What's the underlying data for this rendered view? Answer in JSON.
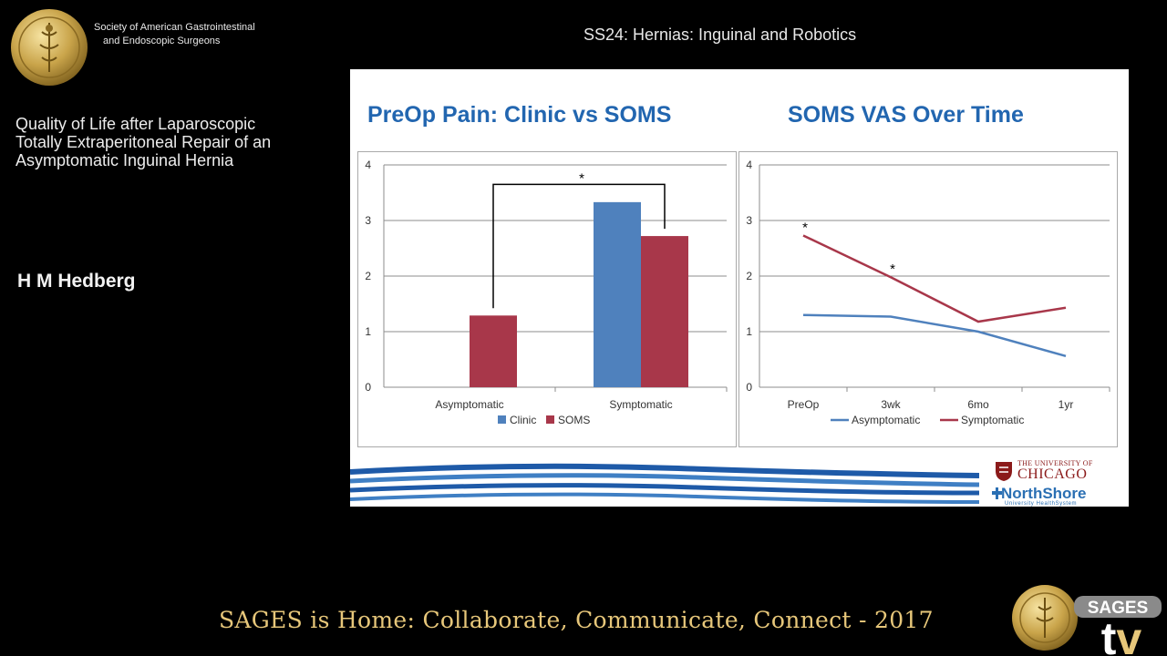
{
  "header": {
    "org_name_line1": "Society of American Gastrointestinal",
    "org_name_line2": "and Endoscopic Surgeons",
    "session_title": "SS24: Hernias: Inguinal and Robotics"
  },
  "sidebar": {
    "talk_title_lines": [
      "Quality of Life after Laparoscopic",
      "Totally Extraperitoneal Repair of an",
      "Asymptomatic Inguinal Hernia"
    ],
    "presenter": "H M Hedberg"
  },
  "slide": {
    "logos": {
      "uchicago_line1": "THE UNIVERSITY OF",
      "uchicago_line2": "CHICAGO",
      "northshore_line1": "NorthShore",
      "northshore_line2": "University HealthSystem"
    }
  },
  "colors": {
    "blue": "#4f81bd",
    "red": "#a8374a",
    "title_blue": "#2266b0",
    "gold": "#e7c77a"
  },
  "chart_data": [
    {
      "type": "bar",
      "title": "PreOp Pain: Clinic vs SOMS",
      "categories": [
        "Asymptomatic",
        "Symptomatic"
      ],
      "series": [
        {
          "name": "Clinic",
          "values": [
            null,
            3.33
          ]
        },
        {
          "name": "SOMS",
          "values": [
            1.29,
            2.72
          ]
        }
      ],
      "ylim": [
        0,
        4
      ],
      "yticks": [
        0,
        1,
        2,
        3,
        4
      ],
      "grid": true,
      "legend": "bottom",
      "annotation": "*"
    },
    {
      "type": "line",
      "title": "SOMS VAS Over Time",
      "x": [
        "PreOp",
        "3wk",
        "6mo",
        "1yr"
      ],
      "series": [
        {
          "name": "Asymptomatic",
          "values": [
            1.3,
            1.27,
            1.0,
            0.56
          ]
        },
        {
          "name": "Symptomatic",
          "values": [
            2.73,
            1.98,
            1.18,
            1.43
          ]
        }
      ],
      "ylim": [
        0,
        4
      ],
      "yticks": [
        0,
        1,
        2,
        3,
        4
      ],
      "grid": true,
      "legend": "bottom",
      "annotations": [
        {
          "x": "PreOp",
          "text": "*"
        },
        {
          "x": "3wk",
          "text": "*"
        }
      ]
    }
  ],
  "footer": {
    "conference_title": "SAGES is Home: Collaborate, Communicate, Connect - 2017",
    "tv_label": "SAGES",
    "tv_mark": "tv"
  }
}
